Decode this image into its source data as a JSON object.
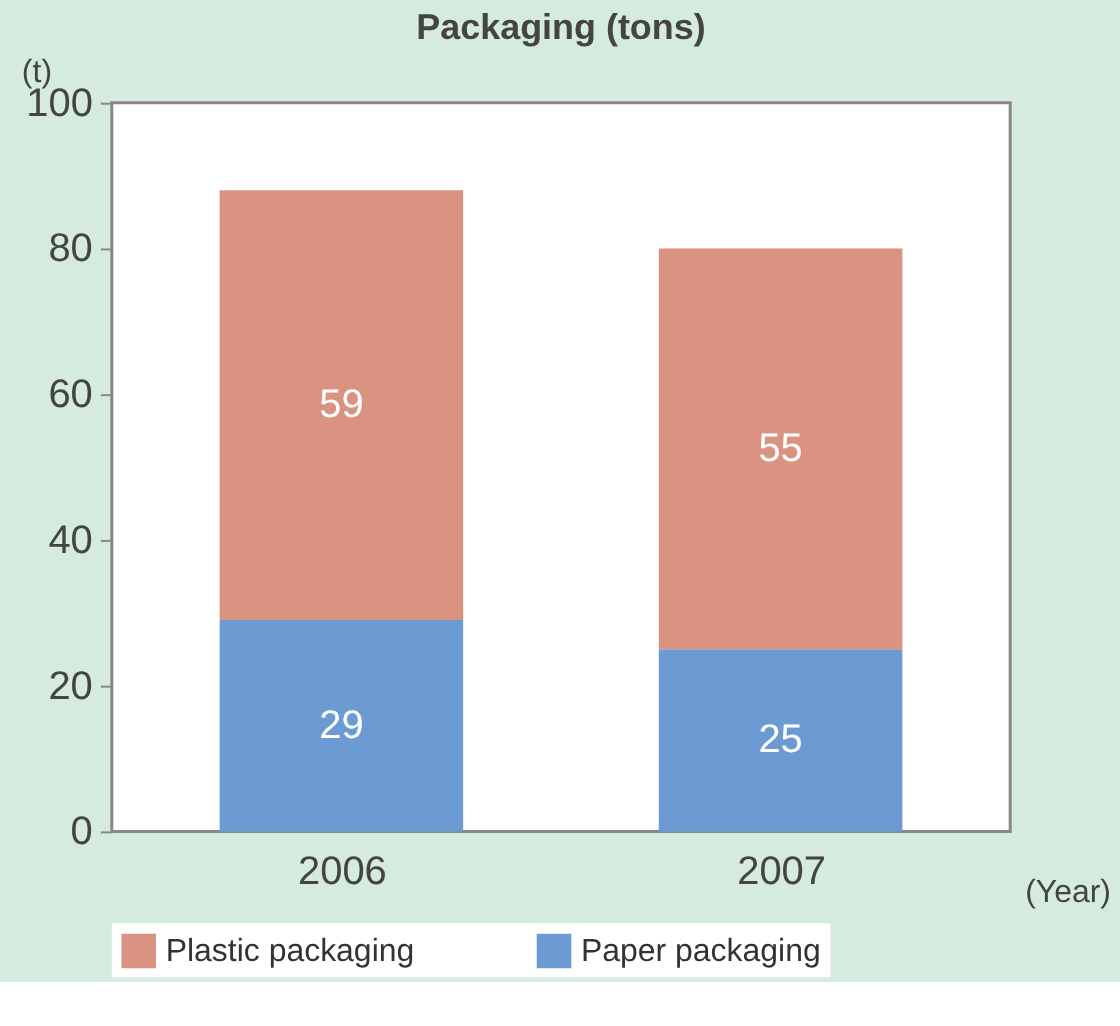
{
  "chart_data": {
    "type": "bar",
    "stacked": true,
    "title": "Packaging (tons)",
    "ylabel": "(t)",
    "xlabel": "(Year)",
    "categories": [
      "2006",
      "2007"
    ],
    "series": [
      {
        "name": "Paper packaging",
        "color": "#6b9bd2",
        "values": [
          29,
          25
        ]
      },
      {
        "name": "Plastic packaging",
        "color": "#d99380",
        "values": [
          59,
          55
        ]
      }
    ],
    "ylim": [
      0,
      100
    ],
    "yticks": [
      0,
      20,
      40,
      60,
      80,
      100
    ],
    "grid": false,
    "legend": "bottom",
    "data_labels": true
  }
}
